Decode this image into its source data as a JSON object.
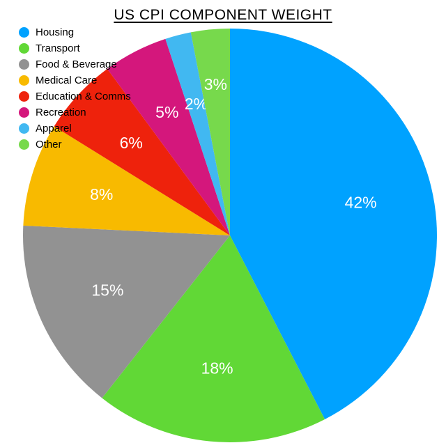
{
  "title": "US CPI COMPONENT WEIGHT",
  "chart_data": {
    "type": "pie",
    "title": "US CPI COMPONENT WEIGHT",
    "legend_position": "top-left",
    "start_angle_deg": 0,
    "direction": "clockwise",
    "slices": [
      {
        "label": "Housing",
        "value": 42,
        "display": "42%",
        "color": "#00A2FF"
      },
      {
        "label": "Transport",
        "value": 18,
        "display": "18%",
        "color": "#61D836"
      },
      {
        "label": "Food & Beverage",
        "value": 15,
        "display": "15%",
        "color": "#929292"
      },
      {
        "label": "Medical Care",
        "value": 8,
        "display": "8%",
        "color": "#F8BA00"
      },
      {
        "label": "Education & Comms",
        "value": 6,
        "display": "6%",
        "color": "#EE220C"
      },
      {
        "label": "Recreation",
        "value": 5,
        "display": "5%",
        "color": "#D4177C",
        "label_r": 1.02
      },
      {
        "label": "Apparel",
        "value": 2,
        "display": "2%",
        "color": "#41B8F1"
      },
      {
        "label": "Other",
        "value": 3,
        "display": "3%",
        "color": "#77D94C",
        "label_r": 1.12
      }
    ]
  }
}
